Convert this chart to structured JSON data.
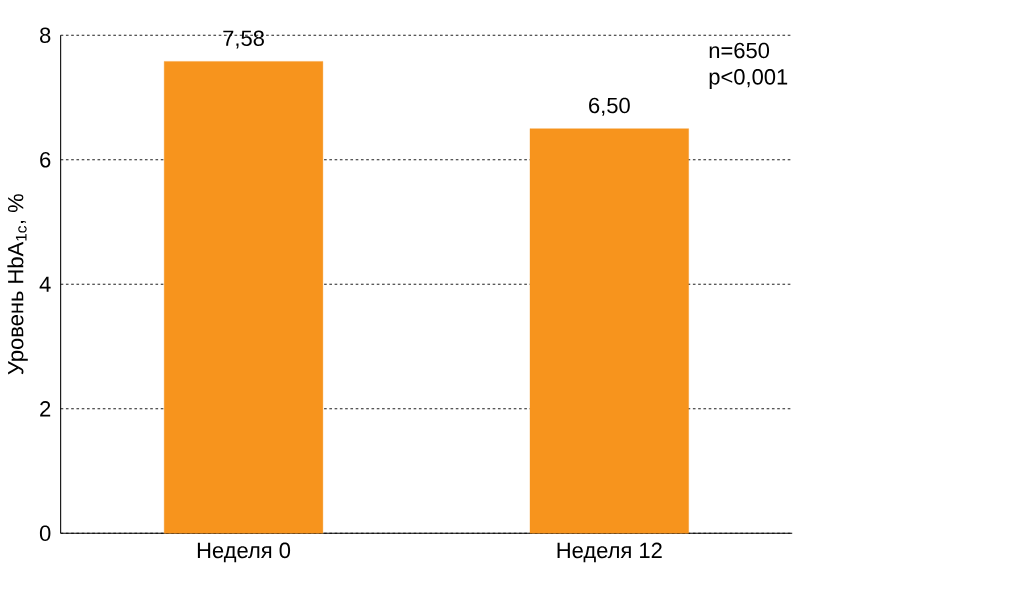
{
  "chart_data": {
    "type": "bar",
    "categories": [
      "Неделя 0",
      "Неделя 12"
    ],
    "values": [
      7.58,
      6.5
    ],
    "value_labels": [
      "7,58",
      "6,50"
    ],
    "color": "#f7941d",
    "ylabel": "Уровень HbA$_{1c}$, %",
    "ylim": [
      0,
      8
    ],
    "yticks": [
      0,
      2,
      4,
      6,
      8
    ],
    "grid": "y",
    "annotations": [
      "n=650",
      "p<0,001"
    ]
  }
}
